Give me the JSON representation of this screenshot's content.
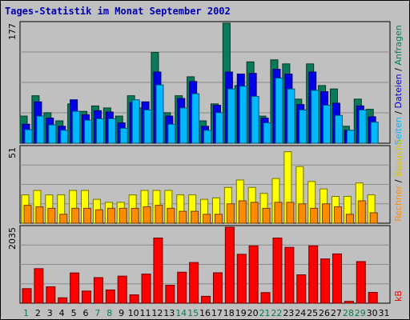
{
  "title": "Tages-Statistik im Monat September 2002",
  "colors": {
    "anfragen": "#0b7a5a",
    "dateien": "#0000e6",
    "seiten": "#00b8ff",
    "besuche": "#ffff00",
    "rechner": "#ff8c00",
    "kb": "#ff0000",
    "weekend_label": "#0a7a4a",
    "weekday_label": "#000000",
    "title": "#0000b0"
  },
  "right_labels": {
    "anfragen": "Anfragen",
    "dateien": "Dateien",
    "seiten": "Seiten",
    "besuche": "Besuche",
    "rechner": "Rechner",
    "kb": "kB",
    "separator": " / "
  },
  "chart_data": [
    {
      "type": "bar",
      "panel": "top",
      "ymax_label": "177",
      "ylim": [
        0,
        177
      ],
      "x": [
        1,
        2,
        3,
        4,
        5,
        6,
        7,
        8,
        9,
        10,
        11,
        12,
        13,
        14,
        15,
        16,
        17,
        18,
        19,
        20,
        21,
        22,
        23,
        24,
        25,
        26,
        27,
        28,
        29,
        30,
        31
      ],
      "weekend_days": [
        1,
        7,
        8,
        14,
        15,
        21,
        22,
        28,
        29
      ],
      "series": [
        {
          "name": "Anfragen",
          "values": [
            40,
            70,
            45,
            33,
            58,
            47,
            55,
            52,
            40,
            70,
            52,
            134,
            45,
            70,
            98,
            33,
            58,
            177,
            85,
            120,
            40,
            123,
            117,
            65,
            117,
            85,
            80,
            25,
            65,
            50,
            0
          ]
        },
        {
          "name": "Dateien",
          "values": [
            28,
            61,
            37,
            25,
            64,
            42,
            48,
            46,
            30,
            60,
            61,
            105,
            40,
            66,
            91,
            25,
            56,
            105,
            102,
            103,
            37,
            109,
            102,
            57,
            105,
            76,
            59,
            19,
            55,
            39,
            0
          ]
        },
        {
          "name": "Seiten",
          "values": [
            20,
            40,
            27,
            19,
            47,
            34,
            36,
            36,
            22,
            64,
            49,
            86,
            28,
            52,
            73,
            19,
            45,
            80,
            84,
            69,
            30,
            96,
            80,
            49,
            78,
            56,
            41,
            19,
            49,
            31,
            0
          ]
        }
      ]
    },
    {
      "type": "bar",
      "panel": "middle",
      "ymax_label": "51",
      "ylim": [
        0,
        51
      ],
      "x": [
        1,
        2,
        3,
        4,
        5,
        6,
        7,
        8,
        9,
        10,
        11,
        12,
        13,
        14,
        15,
        16,
        17,
        18,
        19,
        20,
        21,
        22,
        23,
        24,
        25,
        26,
        27,
        28,
        29,
        30,
        31
      ],
      "series": [
        {
          "name": "Besuche",
          "values": [
            19,
            22,
            19,
            19,
            22,
            22,
            16,
            14,
            14,
            19,
            22,
            22,
            22,
            19,
            19,
            16,
            17,
            24,
            29,
            24,
            20,
            30,
            48,
            38,
            28,
            23,
            18,
            18,
            27,
            19,
            0
          ]
        },
        {
          "name": "Rechner",
          "values": [
            12,
            11,
            10,
            6,
            10,
            10,
            9,
            10,
            10,
            10,
            11,
            12,
            10,
            8,
            8,
            6,
            6,
            13,
            15,
            14,
            10,
            14,
            14,
            13,
            10,
            13,
            11,
            6,
            15,
            7,
            0
          ]
        }
      ]
    },
    {
      "type": "bar",
      "panel": "bottom",
      "ymax_label": "2035",
      "ylim": [
        0,
        2035
      ],
      "x": [
        1,
        2,
        3,
        4,
        5,
        6,
        7,
        8,
        9,
        10,
        11,
        12,
        13,
        14,
        15,
        16,
        17,
        18,
        19,
        20,
        21,
        22,
        23,
        24,
        25,
        26,
        27,
        28,
        29,
        30,
        31
      ],
      "series": [
        {
          "name": "kB",
          "values": [
            390,
            925,
            440,
            145,
            810,
            325,
            685,
            355,
            725,
            225,
            780,
            1745,
            480,
            830,
            1090,
            185,
            815,
            2035,
            1310,
            1535,
            285,
            1745,
            1495,
            760,
            1535,
            1185,
            1320,
            50,
            1115,
            290,
            0
          ]
        }
      ]
    }
  ]
}
